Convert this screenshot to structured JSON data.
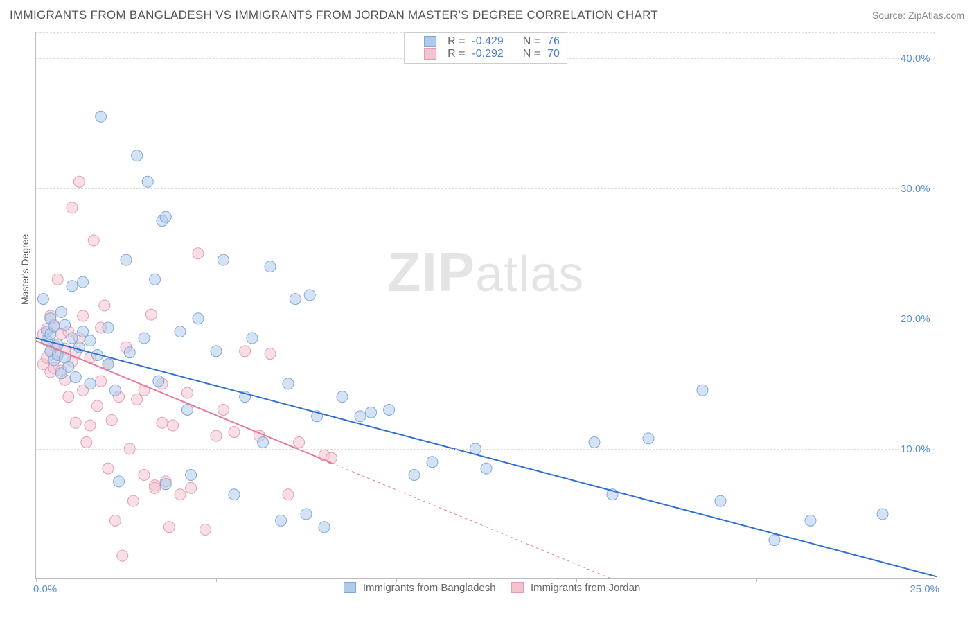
{
  "title": "IMMIGRANTS FROM BANGLADESH VS IMMIGRANTS FROM JORDAN MASTER'S DEGREE CORRELATION CHART",
  "source": "Source: ZipAtlas.com",
  "y_axis_label": "Master's Degree",
  "watermark_zip": "ZIP",
  "watermark_atlas": "atlas",
  "chart": {
    "type": "scatter",
    "xlim": [
      0,
      25
    ],
    "ylim": [
      0,
      42
    ],
    "x_ticks": [
      0,
      5,
      10,
      15,
      20,
      25
    ],
    "x_tick_labels": {
      "0": "0.0%",
      "25": "25.0%"
    },
    "y_ticks": [
      10,
      20,
      30,
      40
    ],
    "y_tick_labels": [
      "10.0%",
      "20.0%",
      "30.0%",
      "40.0%"
    ],
    "background_color": "#ffffff",
    "grid_color": "#dcdcdc",
    "axis_color": "#bdbdbd",
    "tick_label_color": "#5a8fd6",
    "marker_radius": 8,
    "marker_opacity": 0.55,
    "series": [
      {
        "name": "Immigrants from Bangladesh",
        "color_fill": "#aecbeb",
        "color_stroke": "#7fa8d9",
        "R": "-0.429",
        "N": "76",
        "trend": {
          "x1": 0,
          "y1": 18.5,
          "x2": 25,
          "y2": 0.2,
          "solid_until_x": 25,
          "color": "#2f6fd0",
          "width": 2
        },
        "points": [
          [
            0.2,
            21.5
          ],
          [
            0.3,
            18.3
          ],
          [
            0.3,
            19.0
          ],
          [
            0.4,
            17.5
          ],
          [
            0.4,
            18.8
          ],
          [
            0.4,
            20.0
          ],
          [
            0.5,
            16.8
          ],
          [
            0.5,
            19.4
          ],
          [
            0.6,
            17.2
          ],
          [
            0.6,
            18.0
          ],
          [
            0.7,
            15.8
          ],
          [
            0.7,
            20.5
          ],
          [
            0.8,
            17.0
          ],
          [
            0.8,
            19.5
          ],
          [
            0.9,
            16.3
          ],
          [
            1.0,
            18.5
          ],
          [
            1.0,
            22.5
          ],
          [
            1.1,
            15.5
          ],
          [
            1.2,
            17.8
          ],
          [
            1.3,
            19.0
          ],
          [
            1.3,
            22.8
          ],
          [
            1.5,
            15.0
          ],
          [
            1.5,
            18.3
          ],
          [
            1.7,
            17.2
          ],
          [
            1.8,
            35.5
          ],
          [
            2.0,
            16.5
          ],
          [
            2.0,
            19.3
          ],
          [
            2.2,
            14.5
          ],
          [
            2.3,
            7.5
          ],
          [
            2.5,
            24.5
          ],
          [
            2.6,
            17.4
          ],
          [
            2.8,
            32.5
          ],
          [
            3.0,
            18.5
          ],
          [
            3.1,
            30.5
          ],
          [
            3.3,
            23.0
          ],
          [
            3.4,
            15.2
          ],
          [
            3.5,
            27.5
          ],
          [
            3.6,
            27.8
          ],
          [
            3.6,
            7.3
          ],
          [
            4.0,
            19.0
          ],
          [
            4.2,
            13.0
          ],
          [
            4.3,
            8.0
          ],
          [
            4.5,
            20.0
          ],
          [
            5.0,
            17.5
          ],
          [
            5.2,
            24.5
          ],
          [
            5.5,
            6.5
          ],
          [
            5.8,
            14.0
          ],
          [
            6.0,
            18.5
          ],
          [
            6.3,
            10.5
          ],
          [
            6.5,
            24.0
          ],
          [
            6.8,
            4.5
          ],
          [
            7.0,
            15.0
          ],
          [
            7.2,
            21.5
          ],
          [
            7.5,
            5.0
          ],
          [
            7.6,
            21.8
          ],
          [
            7.8,
            12.5
          ],
          [
            8.0,
            4.0
          ],
          [
            8.5,
            14.0
          ],
          [
            9.0,
            12.5
          ],
          [
            9.3,
            12.8
          ],
          [
            9.8,
            13.0
          ],
          [
            10.5,
            8.0
          ],
          [
            11.0,
            9.0
          ],
          [
            12.2,
            10.0
          ],
          [
            12.5,
            8.5
          ],
          [
            15.5,
            10.5
          ],
          [
            16.0,
            6.5
          ],
          [
            17.0,
            10.8
          ],
          [
            18.5,
            14.5
          ],
          [
            19.0,
            6.0
          ],
          [
            20.5,
            3.0
          ],
          [
            21.5,
            4.5
          ],
          [
            23.5,
            5.0
          ]
        ]
      },
      {
        "name": "Immigrants from Jordan",
        "color_fill": "#f3c4cf",
        "color_stroke": "#e79bb0",
        "R": "-0.292",
        "N": "70",
        "trend": {
          "x1": 0,
          "y1": 18.3,
          "x2": 16,
          "y2": 0.0,
          "solid_until_x": 8.2,
          "color": "#e87994",
          "width": 2,
          "dash": "4 4"
        },
        "points": [
          [
            0.2,
            18.8
          ],
          [
            0.2,
            16.5
          ],
          [
            0.3,
            17.0
          ],
          [
            0.3,
            19.2
          ],
          [
            0.4,
            20.2
          ],
          [
            0.4,
            17.5
          ],
          [
            0.4,
            15.9
          ],
          [
            0.5,
            18.0
          ],
          [
            0.5,
            16.2
          ],
          [
            0.5,
            19.5
          ],
          [
            0.6,
            17.3
          ],
          [
            0.6,
            23.0
          ],
          [
            0.7,
            16.0
          ],
          [
            0.7,
            18.8
          ],
          [
            0.8,
            15.3
          ],
          [
            0.8,
            17.7
          ],
          [
            0.9,
            19.0
          ],
          [
            0.9,
            14.0
          ],
          [
            1.0,
            16.7
          ],
          [
            1.0,
            28.5
          ],
          [
            1.1,
            12.0
          ],
          [
            1.1,
            17.4
          ],
          [
            1.2,
            18.5
          ],
          [
            1.2,
            30.5
          ],
          [
            1.3,
            14.5
          ],
          [
            1.3,
            20.2
          ],
          [
            1.4,
            10.5
          ],
          [
            1.5,
            17.0
          ],
          [
            1.5,
            11.8
          ],
          [
            1.6,
            26.0
          ],
          [
            1.7,
            13.3
          ],
          [
            1.8,
            19.3
          ],
          [
            1.8,
            15.2
          ],
          [
            1.9,
            21.0
          ],
          [
            2.0,
            8.5
          ],
          [
            2.0,
            16.5
          ],
          [
            2.1,
            12.2
          ],
          [
            2.2,
            4.5
          ],
          [
            2.3,
            14.0
          ],
          [
            2.4,
            1.8
          ],
          [
            2.5,
            17.8
          ],
          [
            2.6,
            10.0
          ],
          [
            2.7,
            6.0
          ],
          [
            2.8,
            13.8
          ],
          [
            3.0,
            8.0
          ],
          [
            3.0,
            14.5
          ],
          [
            3.2,
            20.3
          ],
          [
            3.3,
            7.2
          ],
          [
            3.3,
            7.0
          ],
          [
            3.5,
            15.0
          ],
          [
            3.5,
            12.0
          ],
          [
            3.6,
            7.5
          ],
          [
            3.7,
            4.0
          ],
          [
            3.8,
            11.8
          ],
          [
            4.0,
            6.5
          ],
          [
            4.2,
            14.3
          ],
          [
            4.3,
            7.0
          ],
          [
            4.5,
            25.0
          ],
          [
            4.7,
            3.8
          ],
          [
            5.0,
            11.0
          ],
          [
            5.2,
            13.0
          ],
          [
            5.5,
            11.3
          ],
          [
            5.8,
            17.5
          ],
          [
            6.2,
            11.0
          ],
          [
            6.5,
            17.3
          ],
          [
            7.0,
            6.5
          ],
          [
            7.3,
            10.5
          ],
          [
            8.0,
            9.5
          ],
          [
            8.2,
            9.3
          ]
        ]
      }
    ]
  },
  "legend_labels": {
    "R": "R =",
    "N": "N ="
  }
}
